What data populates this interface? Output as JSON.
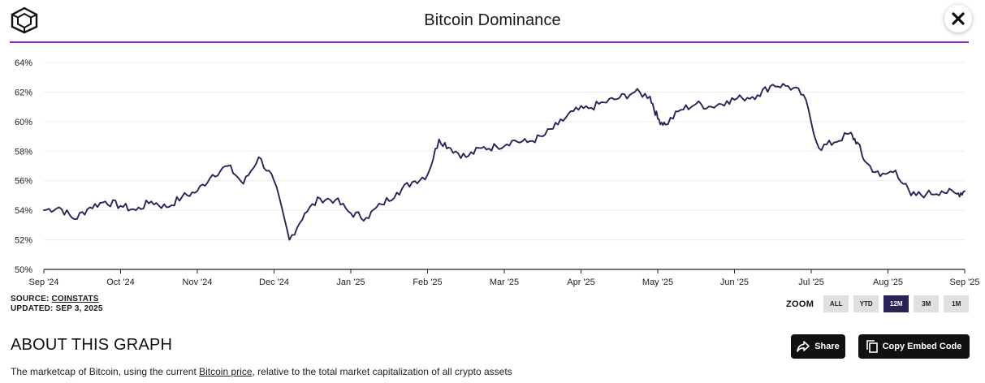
{
  "header": {
    "title": "Bitcoin Dominance"
  },
  "source": {
    "prefix": "SOURCE: ",
    "name": "COINSTATS",
    "updated": "UPDATED: SEP 3, 2025"
  },
  "zoom": {
    "label": "ZOOM",
    "options": [
      "ALL",
      "YTD",
      "12M",
      "3M",
      "1M"
    ],
    "selected": "12M"
  },
  "about": {
    "heading": "ABOUT THIS GRAPH",
    "desc_before": "The marketcap of Bitcoin, using the current ",
    "desc_link": "Bitcoin price",
    "desc_after": ", relative to the total market capitalization of all crypto assets"
  },
  "actions": {
    "share_label": "Share",
    "embed_label": "Copy Embed Code"
  },
  "colors": {
    "line": "#2d2257",
    "accent": "#9b1fd1",
    "grid": "#ececec",
    "axis": "#222222"
  },
  "chart_data": {
    "type": "line",
    "title": "Bitcoin Dominance",
    "xlabel": "",
    "ylabel": "",
    "ylim": [
      50,
      64
    ],
    "yticks": [
      50,
      52,
      54,
      56,
      58,
      60,
      62,
      64
    ],
    "ytick_labels": [
      "50%",
      "52%",
      "54%",
      "56%",
      "58%",
      "60%",
      "62%",
      "64%"
    ],
    "x_labels": [
      "Sep '24",
      "Oct '24",
      "Nov '24",
      "Dec '24",
      "Jan '25",
      "Feb '25",
      "Mar '25",
      "Apr '25",
      "May '25",
      "Jun '25",
      "Jul '25",
      "Aug '25",
      "Sep '25"
    ],
    "grid": true,
    "series": [
      {
        "name": "Bitcoin Dominance",
        "x": [
          0,
          0.2,
          0.4,
          0.6,
          0.8,
          1.0,
          1.2,
          1.4,
          1.6,
          1.8,
          2.0,
          2.2,
          2.4,
          2.6,
          2.8,
          3.0,
          3.2,
          3.4,
          3.6,
          3.8,
          4.0,
          4.2,
          4.4,
          4.6,
          4.8,
          5.0,
          5.15,
          5.3,
          5.5,
          5.7,
          5.9,
          6.1,
          6.3,
          6.5,
          6.7,
          6.9,
          7.1,
          7.3,
          7.5,
          7.7,
          7.9,
          8.0,
          8.1,
          8.3,
          8.5,
          8.7,
          8.9,
          9.1,
          9.3,
          9.5,
          9.7,
          9.9,
          10.1,
          10.3,
          10.5,
          10.6,
          10.7,
          10.9,
          11.1,
          11.3,
          11.5,
          11.7,
          11.9,
          12.0
        ],
        "values": [
          54.0,
          54.2,
          53.4,
          54.2,
          54.6,
          54.3,
          54.0,
          54.6,
          54.2,
          54.9,
          55.3,
          56.4,
          57.0,
          55.8,
          57.6,
          56.0,
          52.0,
          53.8,
          54.8,
          54.7,
          53.8,
          53.5,
          54.4,
          55.2,
          55.9,
          56.4,
          58.8,
          58.2,
          57.6,
          58.2,
          58.3,
          58.7,
          58.6,
          59.0,
          59.8,
          60.7,
          60.9,
          61.3,
          61.6,
          62.0,
          61.7,
          60.2,
          59.8,
          60.8,
          61.2,
          61.0,
          61.4,
          61.6,
          61.8,
          62.5,
          62.4,
          61.8,
          58.2,
          58.6,
          59.2,
          58.6,
          57.3,
          56.3,
          56.7,
          55.0,
          55.1,
          55.3,
          55.1,
          55.3
        ]
      }
    ]
  }
}
